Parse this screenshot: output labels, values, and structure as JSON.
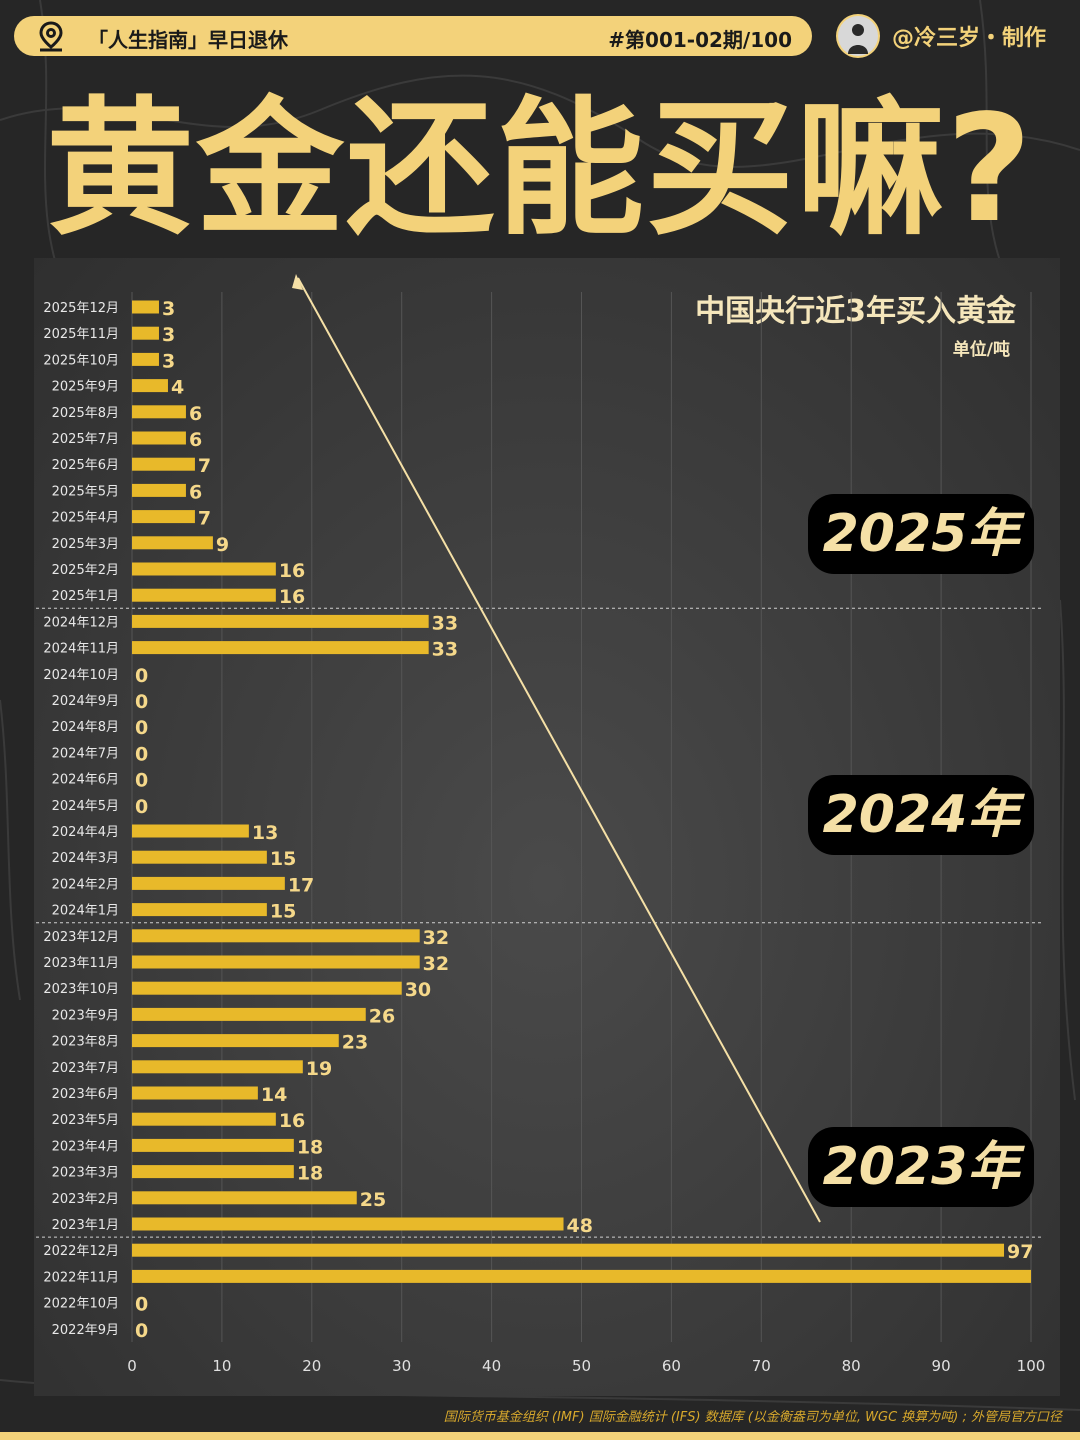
{
  "header": {
    "series_name": "「人生指南」早日退休",
    "issue": "#第001-02期/100",
    "author": "@冷三岁・制作",
    "icons": {
      "location": "location-pin-icon",
      "avatar": "avatar"
    }
  },
  "headline": "黄金还能买嘛?",
  "colors": {
    "accent": "#f3d27a",
    "bar": "#e8b92a",
    "label": "#f5d88a",
    "background": "#262626"
  },
  "chart_data": {
    "type": "bar",
    "orientation": "horizontal",
    "title": "中国央行近3年买入黄金",
    "unit": "单位/吨",
    "xlim": [
      0,
      100
    ],
    "xticks": [
      0,
      10,
      20,
      30,
      40,
      50,
      60,
      70,
      80,
      90,
      100
    ],
    "grid": true,
    "categories": [
      "2025年12月",
      "2025年11月",
      "2025年10月",
      "2025年9月",
      "2025年8月",
      "2025年7月",
      "2025年6月",
      "2025年5月",
      "2025年4月",
      "2025年3月",
      "2025年2月",
      "2025年1月",
      "2024年12月",
      "2024年11月",
      "2024年10月",
      "2024年9月",
      "2024年8月",
      "2024年7月",
      "2024年6月",
      "2024年5月",
      "2024年4月",
      "2024年3月",
      "2024年2月",
      "2024年1月",
      "2023年12月",
      "2023年11月",
      "2023年10月",
      "2023年9月",
      "2023年8月",
      "2023年7月",
      "2023年6月",
      "2023年5月",
      "2023年4月",
      "2023年3月",
      "2023年2月",
      "2023年1月",
      "2022年12月",
      "2022年11月",
      "2022年10月",
      "2022年9月"
    ],
    "values": [
      3,
      3,
      3,
      4,
      6,
      6,
      7,
      6,
      7,
      9,
      16,
      16,
      33,
      33,
      0,
      0,
      0,
      0,
      0,
      0,
      13,
      15,
      17,
      15,
      32,
      32,
      30,
      26,
      23,
      19,
      14,
      16,
      18,
      18,
      25,
      48,
      97,
      100,
      0,
      0
    ],
    "data_labels": [
      "3",
      "3",
      "3",
      "4",
      "6",
      "6",
      "7",
      "6",
      "7",
      "9",
      "16",
      "16",
      "33",
      "33",
      "0",
      "0",
      "0",
      "0",
      "0",
      "0",
      "13",
      "15",
      "17",
      "15",
      "32",
      "32",
      "30",
      "26",
      "23",
      "19",
      "14",
      "16",
      "18",
      "18",
      "25",
      "48",
      "97",
      "",
      "0",
      "0"
    ],
    "year_badges": [
      "2025年",
      "2024年",
      "2023年"
    ]
  },
  "source": "国际货币基金组织 (IMF) 国际金融统计 (IFS) 数据库 (以金衡盎司为单位, WGC 换算为吨) ; 外管局官方口径"
}
